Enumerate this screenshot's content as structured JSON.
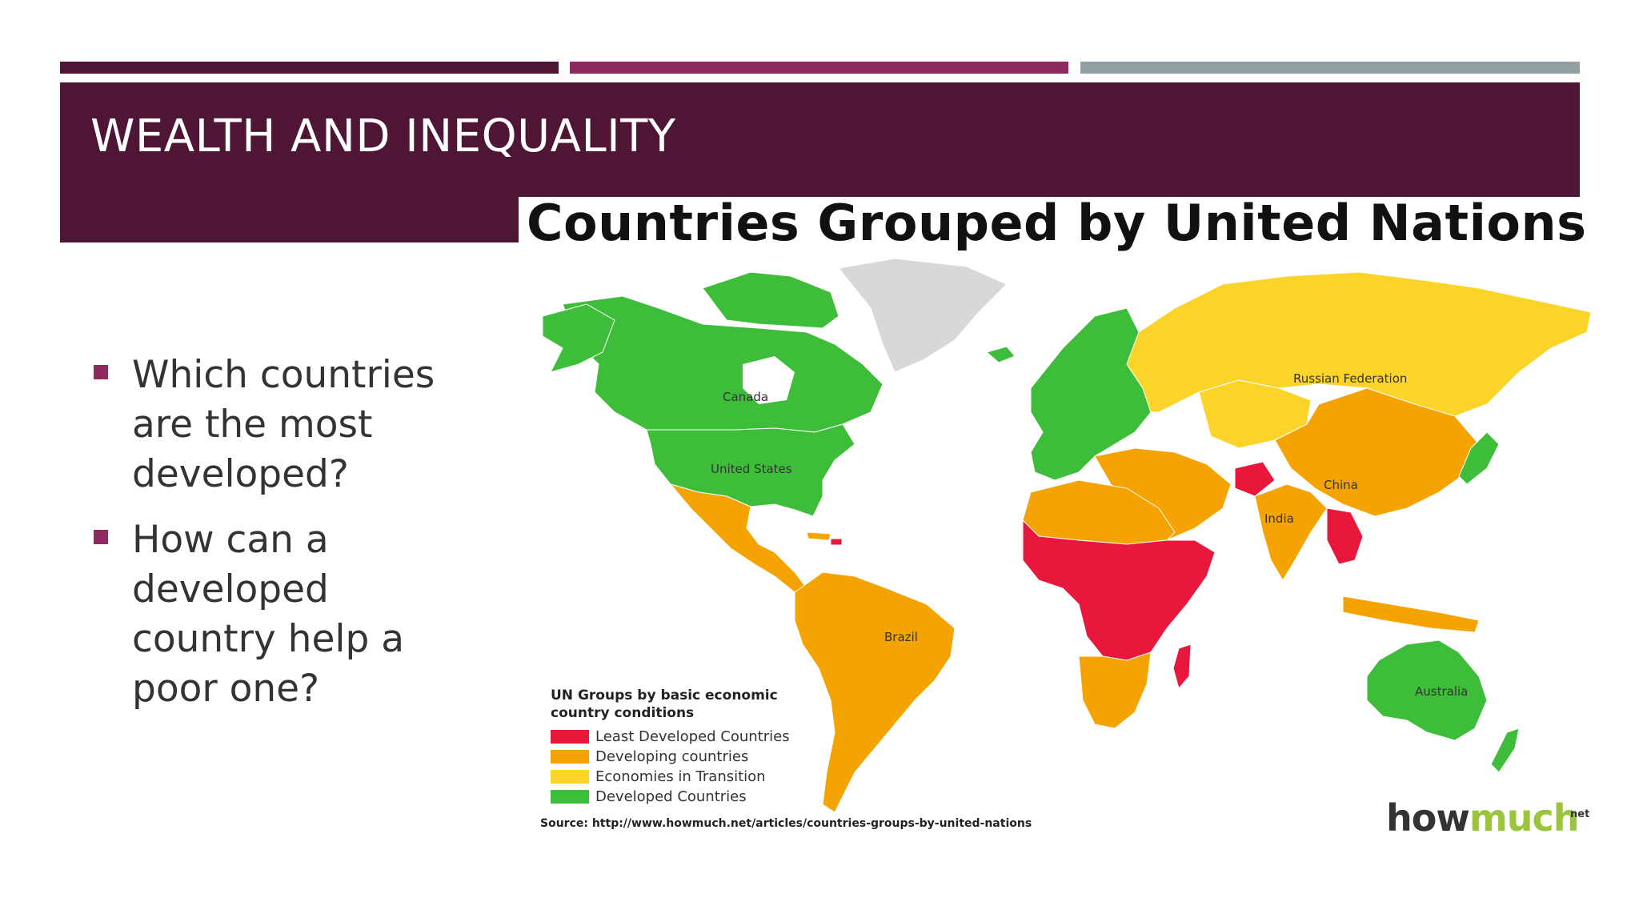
{
  "slide": {
    "title": "WEALTH AND INEQUALITY",
    "bullets": [
      "Which countries are the most developed?",
      "How can a developed country help a poor one?"
    ]
  },
  "colors": {
    "bar_dark": "#4f1534",
    "bar_magenta": "#8e2a5e",
    "bar_gray": "#93a0a1",
    "title_band": "#4f1534",
    "bullet": "#8e2a5e",
    "least_developed": "#e8173b",
    "developing": "#f5a300",
    "transition": "#fbd42a",
    "developed": "#3ebd3a",
    "no_data": "#d8d8d8"
  },
  "map": {
    "heading": "Countries Grouped by United Nations",
    "country_labels": {
      "canada": "Canada",
      "united_states": "United States",
      "brazil": "Brazil",
      "russia": "Russian Federation",
      "china": "China",
      "india": "India",
      "australia": "Australia"
    },
    "legend": {
      "title": "UN Groups by basic economic country conditions",
      "items": [
        {
          "label": "Least Developed Countries",
          "color": "#e8173b"
        },
        {
          "label": "Developing countries",
          "color": "#f5a300"
        },
        {
          "label": "Economies in Transition",
          "color": "#fbd42a"
        },
        {
          "label": "Developed Countries",
          "color": "#3ebd3a"
        }
      ]
    },
    "source": "Source: http://www.howmuch.net/articles/countries-groups-by-united-nations",
    "brand": {
      "prefix": "how",
      "accent": "much",
      "suffix": "net"
    }
  }
}
